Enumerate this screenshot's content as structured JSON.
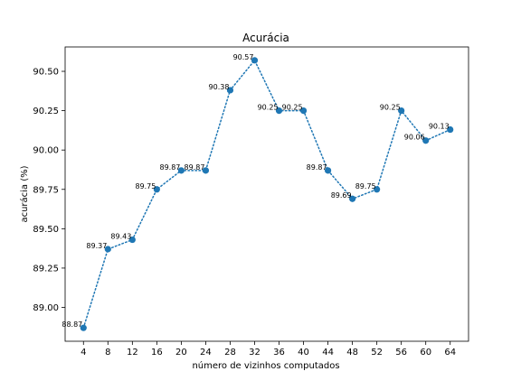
{
  "chart_data": {
    "type": "line",
    "title": "Acurácia",
    "xlabel": "número de vizinhos computados",
    "ylabel": "acurácia (%)",
    "x": [
      4,
      8,
      12,
      16,
      20,
      24,
      28,
      32,
      36,
      40,
      44,
      48,
      52,
      56,
      60,
      64
    ],
    "y": [
      88.87,
      89.37,
      89.43,
      89.75,
      89.87,
      89.87,
      90.38,
      90.57,
      90.25,
      90.25,
      89.87,
      89.69,
      89.75,
      90.25,
      90.06,
      90.13
    ],
    "point_labels": [
      "88.87",
      "89.37",
      "89.43",
      "89.75",
      "89.87",
      "89.87",
      "90.38",
      "90.57",
      "90.25",
      "90.25",
      "89.87",
      "89.69",
      "89.75",
      "90.25",
      "90.06",
      "90.13"
    ],
    "xticks": [
      "4",
      "8",
      "12",
      "16",
      "20",
      "24",
      "28",
      "32",
      "36",
      "40",
      "44",
      "48",
      "52",
      "56",
      "60",
      "64"
    ],
    "yticks": [
      "89.00",
      "89.25",
      "89.50",
      "89.75",
      "90.00",
      "90.25",
      "90.50"
    ],
    "xlim": [
      1,
      67
    ],
    "ylim": [
      88.785,
      90.655
    ],
    "grid": false,
    "line_style": "dotted",
    "marker": "circle",
    "color": "#1f77b4"
  }
}
